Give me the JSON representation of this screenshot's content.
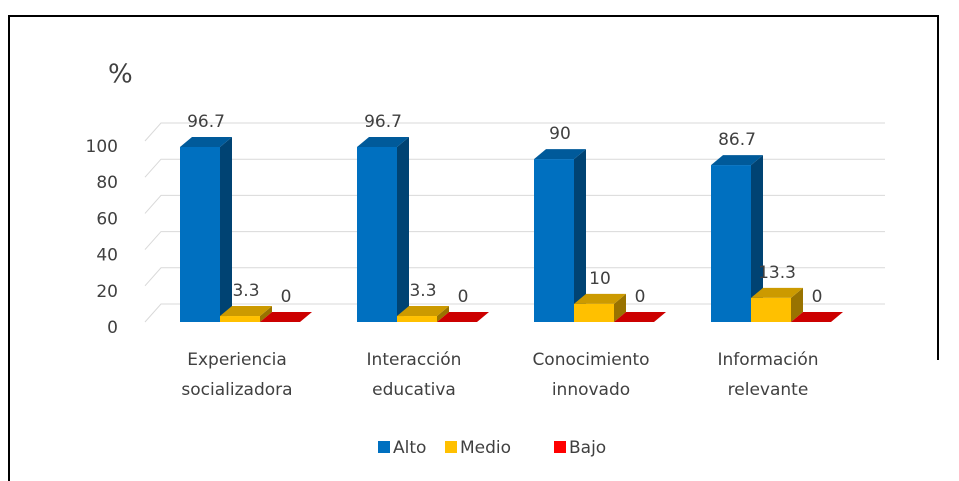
{
  "chart_data": {
    "type": "bar3d",
    "y_label": "%",
    "categories": [
      "Experiencia socializadora",
      "Interacción educativa",
      "Conocimiento innovado",
      "Información relevante"
    ],
    "series": [
      {
        "name": "Alto",
        "color": "#0070c0",
        "values": [
          96.7,
          96.7,
          90,
          86.7
        ]
      },
      {
        "name": "Medio",
        "color": "#ffc000",
        "values": [
          3.3,
          3.3,
          10,
          13.3
        ]
      },
      {
        "name": "Bajo",
        "color": "#ff0000",
        "values": [
          0,
          0,
          0,
          0
        ]
      }
    ],
    "ylim": [
      0,
      100
    ],
    "yticks": [
      0,
      20,
      40,
      60,
      80,
      100
    ],
    "grid": true,
    "legend": "bottom"
  }
}
